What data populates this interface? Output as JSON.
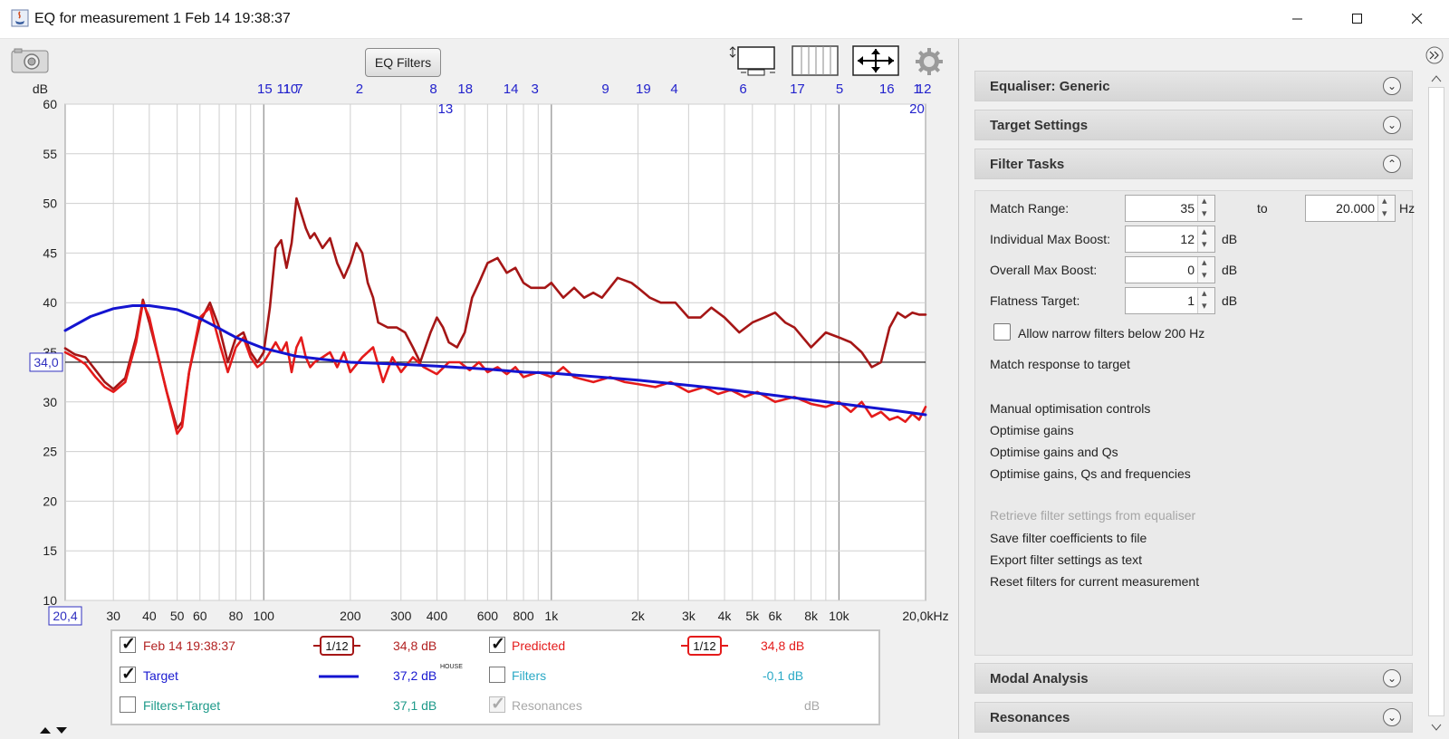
{
  "window": {
    "title": "EQ for measurement 1 Feb 14 19:38:37",
    "minimize": "—",
    "maximize": "☐",
    "close": "✕"
  },
  "toolbar": {
    "eq_filters_label": "EQ Filters"
  },
  "plot": {
    "y_unit_label": "dB",
    "y_ticks": [
      "60",
      "55",
      "50",
      "45",
      "40",
      "35",
      "30",
      "25",
      "20",
      "15",
      "10"
    ],
    "x_ticks": [
      "30",
      "40",
      "50",
      "60",
      "80",
      "100",
      "200",
      "300",
      "400",
      "600",
      "800",
      "1k",
      "2k",
      "3k",
      "4k",
      "5k",
      "6k",
      "8k",
      "10k",
      "20,0kHz"
    ],
    "x_start_label": "20,4",
    "ref_level_label": "34,0",
    "filter_markers_top": [
      "15",
      "11",
      "10",
      "7",
      "2",
      "8",
      "18",
      "14",
      "3",
      "9",
      "19",
      "4",
      "6",
      "17",
      "5",
      "16",
      "1",
      "12"
    ],
    "filter_markers_second": [
      "13",
      "20"
    ]
  },
  "chart_data": {
    "type": "line",
    "title": "",
    "xlabel": "",
    "ylabel": "dB",
    "xscale": "log",
    "xlim": [
      20.4,
      20000
    ],
    "ylim": [
      10,
      60
    ],
    "grid": true,
    "reference_line": 34.0,
    "series": [
      {
        "name": "Feb 14 19:38:37",
        "color": "#a51616",
        "x": [
          20.4,
          22,
          24,
          26,
          28,
          30,
          33,
          36,
          38,
          40,
          43,
          46,
          50,
          52,
          55,
          60,
          65,
          70,
          75,
          80,
          85,
          90,
          95,
          100,
          105,
          110,
          115,
          120,
          125,
          130,
          135,
          140,
          145,
          150,
          160,
          170,
          180,
          190,
          200,
          210,
          220,
          230,
          240,
          250,
          270,
          290,
          310,
          330,
          350,
          380,
          400,
          420,
          440,
          470,
          500,
          530,
          560,
          600,
          650,
          700,
          750,
          800,
          850,
          900,
          950,
          1000,
          1100,
          1200,
          1300,
          1400,
          1500,
          1700,
          1900,
          2000,
          2200,
          2400,
          2700,
          3000,
          3300,
          3600,
          4000,
          4500,
          5000,
          5500,
          6000,
          6500,
          7000,
          8000,
          9000,
          10000,
          11000,
          12000,
          13000,
          14000,
          15000,
          16000,
          17000,
          18000,
          19000,
          20000
        ],
        "y": [
          35.4,
          34.8,
          34.5,
          33.2,
          32.0,
          31.3,
          32.4,
          36.5,
          40.3,
          38.0,
          34.5,
          31.0,
          27.3,
          28.0,
          33.0,
          38.0,
          40.0,
          37.5,
          34.0,
          36.5,
          37.0,
          35.0,
          34.0,
          35.0,
          39.5,
          45.5,
          46.3,
          43.5,
          46.0,
          50.5,
          49.0,
          47.5,
          46.5,
          47.0,
          45.5,
          46.5,
          44.0,
          42.5,
          44.0,
          46.0,
          45.0,
          42.0,
          40.5,
          38.0,
          37.5,
          37.5,
          37.0,
          35.5,
          34.0,
          37.0,
          38.5,
          37.5,
          36.0,
          35.5,
          37.0,
          40.5,
          42.0,
          44.0,
          44.5,
          43.0,
          43.5,
          42.0,
          41.5,
          41.5,
          41.5,
          42.0,
          40.5,
          41.5,
          40.5,
          41.0,
          40.5,
          42.5,
          42.0,
          41.5,
          40.5,
          40.0,
          40.0,
          38.5,
          38.5,
          39.5,
          38.5,
          37.0,
          38.0,
          38.5,
          39.0,
          38.0,
          37.5,
          35.5,
          37.0,
          36.5,
          36.0,
          35.0,
          33.5,
          34.0,
          37.5,
          39.0,
          38.5,
          39.0,
          38.8,
          38.8
        ]
      },
      {
        "name": "Predicted",
        "color": "#e41b1b",
        "x": [
          20.4,
          22,
          24,
          26,
          28,
          30,
          33,
          36,
          38,
          40,
          43,
          46,
          50,
          52,
          55,
          60,
          65,
          70,
          75,
          80,
          85,
          90,
          95,
          100,
          105,
          110,
          115,
          120,
          125,
          130,
          135,
          140,
          145,
          150,
          160,
          170,
          180,
          190,
          200,
          220,
          240,
          260,
          280,
          300,
          330,
          360,
          400,
          440,
          480,
          520,
          560,
          600,
          650,
          700,
          750,
          800,
          900,
          1000,
          1100,
          1200,
          1400,
          1600,
          1800,
          2000,
          2300,
          2600,
          3000,
          3400,
          3800,
          4200,
          4700,
          5200,
          6000,
          7000,
          8000,
          9000,
          10000,
          11000,
          12000,
          13000,
          14000,
          15000,
          16000,
          17000,
          18000,
          19000,
          20000
        ],
        "y": [
          35.0,
          34.5,
          33.8,
          32.5,
          31.5,
          31.0,
          32.0,
          36.0,
          40.0,
          38.5,
          34.5,
          31.0,
          26.8,
          27.5,
          33.0,
          38.5,
          39.5,
          36.0,
          33.0,
          35.5,
          36.5,
          34.5,
          33.5,
          34.0,
          35.0,
          36.0,
          35.0,
          36.0,
          33.0,
          35.5,
          36.5,
          34.5,
          33.5,
          34.0,
          34.5,
          35.0,
          33.5,
          35.0,
          33.0,
          34.5,
          35.5,
          32.0,
          34.5,
          33.0,
          34.5,
          33.5,
          32.8,
          34.0,
          34.0,
          33.2,
          34.0,
          33.0,
          33.5,
          32.8,
          33.5,
          32.5,
          33.0,
          32.5,
          33.5,
          32.5,
          32.0,
          32.5,
          32.0,
          31.8,
          31.5,
          32.0,
          31.0,
          31.5,
          30.8,
          31.2,
          30.5,
          31.0,
          30.0,
          30.5,
          29.8,
          29.5,
          30.0,
          29.0,
          30.0,
          28.5,
          29.0,
          28.2,
          28.5,
          28.0,
          28.8,
          28.2,
          29.5
        ]
      },
      {
        "name": "Target",
        "color": "#1414d0",
        "x": [
          20.4,
          25,
          30,
          35,
          40,
          50,
          60,
          70,
          80,
          100,
          130,
          160,
          200,
          300,
          400,
          600,
          800,
          1000,
          2000,
          4000,
          8000,
          16000,
          20000
        ],
        "y": [
          37.2,
          38.6,
          39.4,
          39.7,
          39.7,
          39.3,
          38.4,
          37.4,
          36.5,
          35.4,
          34.6,
          34.3,
          34.0,
          33.8,
          33.6,
          33.3,
          33.0,
          32.9,
          32.2,
          31.3,
          30.2,
          29.1,
          28.7
        ]
      }
    ]
  },
  "legend": {
    "rows": [
      {
        "left_label": "Feb 14 19:38:37",
        "left_smooth": "1/12",
        "left_value": "34,8 dB",
        "right_label": "Predicted",
        "right_smooth": "1/12",
        "right_value": "34,8 dB"
      },
      {
        "left_label": "Target",
        "left_value": "37,2 dB",
        "left_sup": "HOUSE",
        "right_label": "Filters",
        "right_value": "-0,1 dB"
      },
      {
        "left_label": "Filters+Target",
        "left_value": "37,1 dB",
        "right_label": "Resonances",
        "right_value": "dB"
      }
    ]
  },
  "sections": {
    "equaliser": "Equaliser: Generic",
    "target_settings": "Target Settings",
    "filter_tasks": "Filter Tasks",
    "modal_analysis": "Modal Analysis",
    "resonances": "Resonances"
  },
  "filter_tasks": {
    "match_range_label": "Match Range:",
    "match_range_from": "35",
    "to_label": "to",
    "match_range_to": "20.000",
    "hz_unit": "Hz",
    "max_boost_label": "Individual Max Boost:",
    "max_boost_value": "12",
    "overall_boost_label": "Overall Max Boost:",
    "overall_boost_value": "0",
    "flatness_label": "Flatness Target:",
    "flatness_value": "1",
    "db_unit": "dB",
    "narrow_filters_label": "Allow narrow filters below 200 Hz",
    "match_response": "Match response to target",
    "manual_controls": "Manual optimisation controls",
    "optimise_gains": "Optimise gains",
    "optimise_gains_qs": "Optimise gains and Qs",
    "optimise_all": "Optimise gains, Qs and frequencies",
    "retrieve": "Retrieve filter settings from equaliser",
    "save_coeffs": "Save filter coefficients to file",
    "export_text": "Export filter settings as text",
    "reset_filters": "Reset filters for current measurement"
  }
}
